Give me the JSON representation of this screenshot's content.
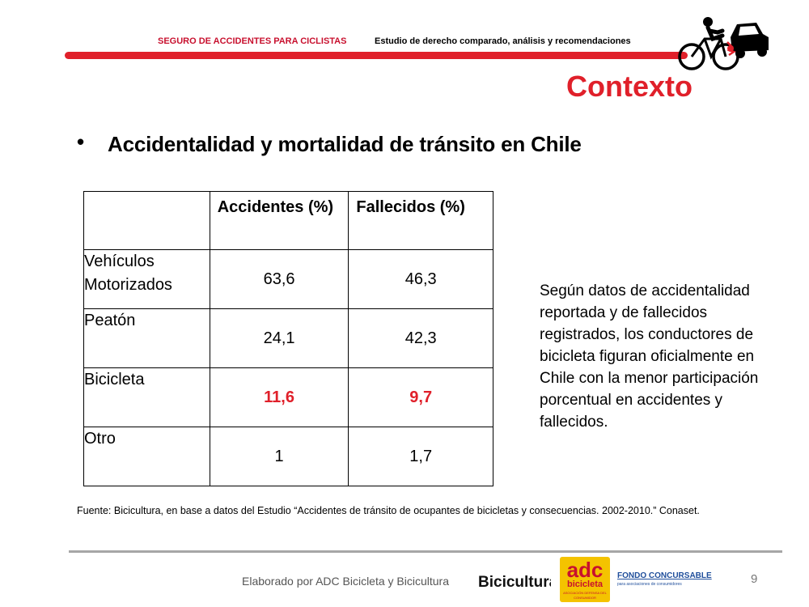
{
  "header": {
    "left_title": "SEGURO DE ACCIDENTES PARA CICLISTAS",
    "right_title": "Estudio de derecho comparado, análisis y recomendaciones",
    "accent_color": "#e0202a"
  },
  "slide": {
    "title": "Contexto",
    "bullet_symbol": "•",
    "bullet_text": "Accidentalidad y mortalidad de tránsito en Chile"
  },
  "table": {
    "headers": [
      "",
      "Accidentes (%)",
      "Fallecidos (%)"
    ],
    "rows": [
      {
        "label": "Vehículos Motorizados",
        "accidentes": "63,6",
        "fallecidos": "46,3"
      },
      {
        "label": "Peatón",
        "accidentes": "24,1",
        "fallecidos": "42,3"
      },
      {
        "label": "Bicicleta",
        "accidentes": "11,6",
        "fallecidos": "9,7"
      },
      {
        "label": "Otro",
        "accidentes": "1",
        "fallecidos": "1,7"
      }
    ],
    "highlight_color": "#e0202a"
  },
  "side_text": "Según datos de accidentalidad reportada y de fallecidos registrados, los conductores de bicicleta figuran oficialmente en Chile con  la menor participación porcentual en accidentes y fallecidos.",
  "source": "Fuente: Bicicultura, en base a datos del Estudio “Accidentes de tránsito de ocupantes de bicicletas y consecuencias. 2002-2010.” Conaset.",
  "footer": {
    "credit": "Elaborado por ADC Bicicleta y Bicicultura",
    "logo_bicicultura": "Bicicultura",
    "logo_adc_main": "adc",
    "logo_adc_sub": "bicicleta",
    "logo_adc_small": "ASOCIACIÓN DEFENSA DEL CONSUMIDOR",
    "logo_fondo_title": "FONDO CONCURSABLE",
    "logo_fondo_sub": "para asociaciones de consumidores",
    "page_number": "9"
  }
}
